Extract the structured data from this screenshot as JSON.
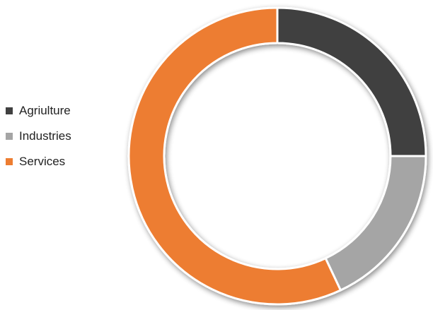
{
  "chart_data": {
    "type": "pie",
    "variant": "donut",
    "title": "",
    "categories": [
      "Agriulture",
      "Industries",
      "Services"
    ],
    "values": [
      25,
      18,
      57
    ],
    "colors": [
      "#404040",
      "#a5a5a5",
      "#ed7d31"
    ],
    "legend_position": "left"
  }
}
